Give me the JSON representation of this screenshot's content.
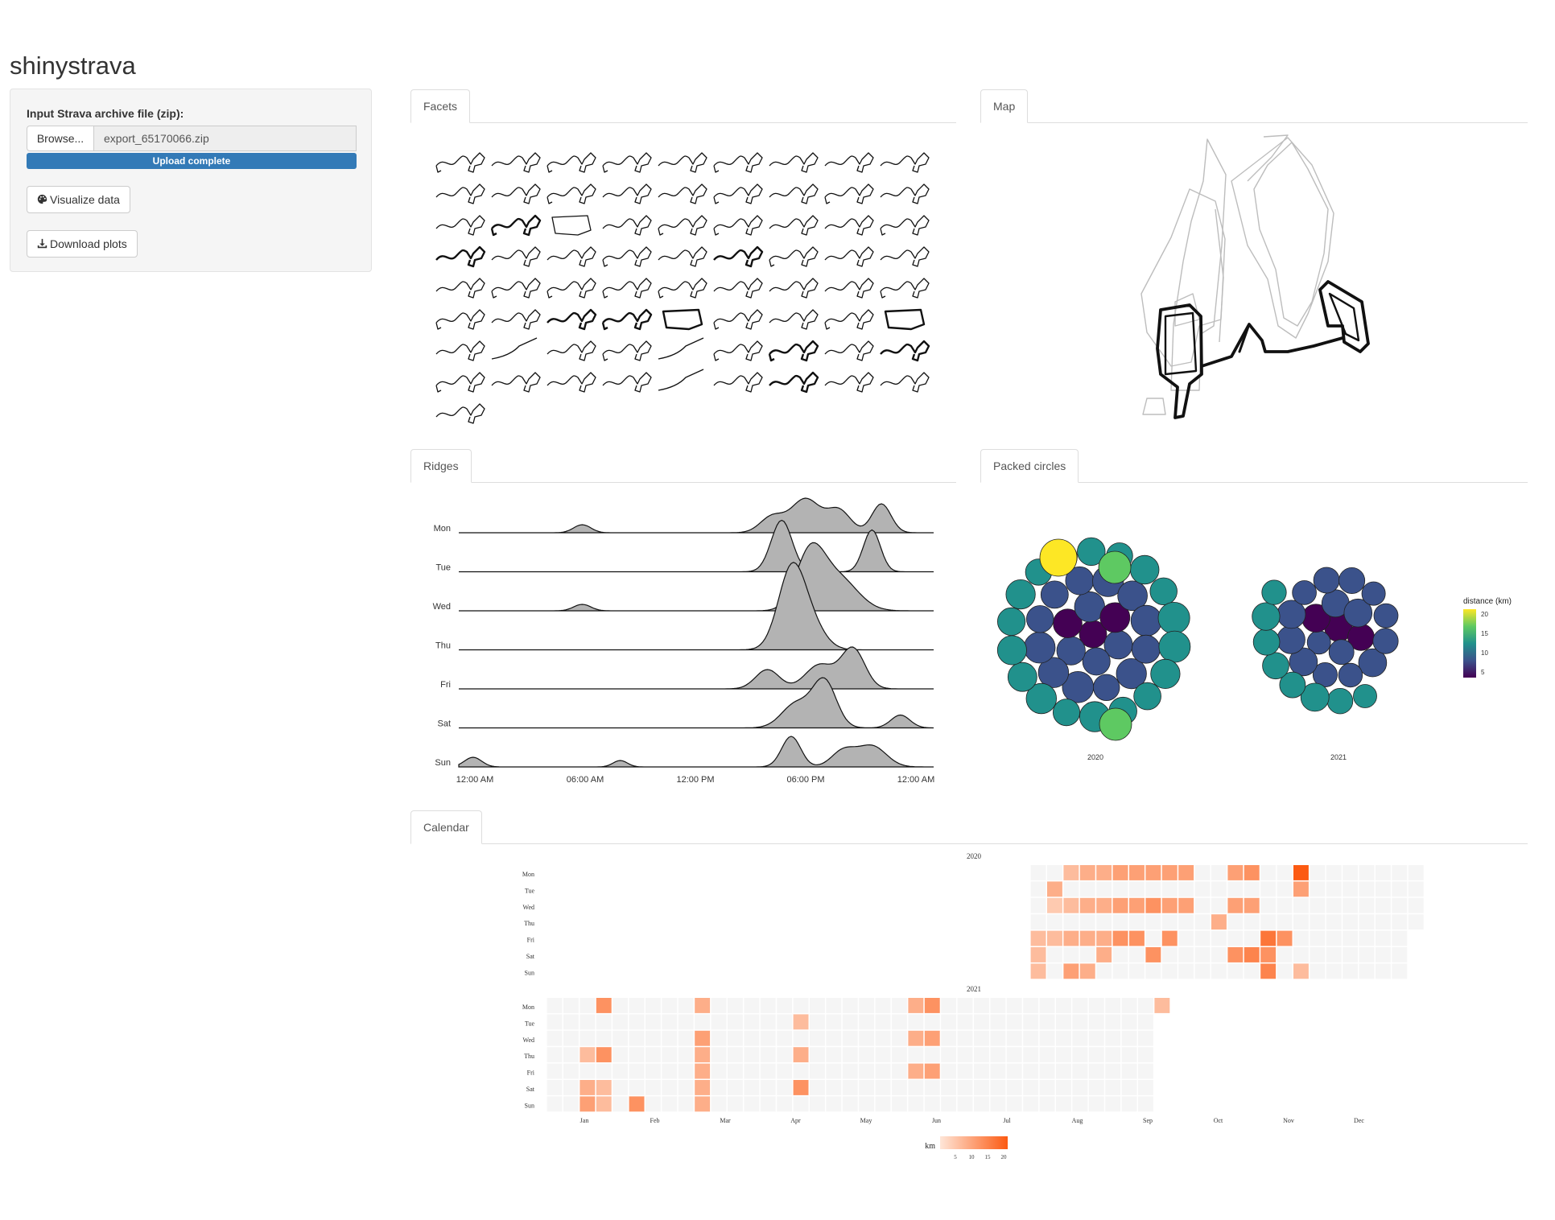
{
  "app": {
    "title": "shinystrava"
  },
  "sidebar": {
    "file_label": "Input Strava archive file (zip):",
    "browse_label": "Browse...",
    "file_name": "export_65170066.zip",
    "upload_status": "Upload complete",
    "upload_progress": 1.0,
    "visualize_label": "Visualize data",
    "download_label": "Download plots"
  },
  "tabs": {
    "facets": "Facets",
    "map": "Map",
    "ridges": "Ridges",
    "packed": "Packed circles",
    "calendar": "Calendar"
  },
  "ridges": {
    "days": [
      "Mon",
      "Tue",
      "Wed",
      "Thu",
      "Fri",
      "Sat",
      "Sun"
    ],
    "x_ticks": [
      "12:00 AM",
      "06:00 AM",
      "12:00 PM",
      "06:00 PM",
      "12:00 AM"
    ],
    "fill_color": "#b3b3b3"
  },
  "packed": {
    "legend_title": "distance (km)",
    "legend_ticks": [
      "20",
      "15",
      "10",
      "5"
    ],
    "groups": [
      "2020",
      "2021"
    ],
    "palette": [
      "#440154",
      "#3b528b",
      "#21918c",
      "#5ec962",
      "#fde725"
    ]
  },
  "calendar": {
    "years": [
      "2020",
      "2021"
    ],
    "days": [
      "Mon",
      "Tue",
      "Wed",
      "Thu",
      "Fri",
      "Sat",
      "Sun"
    ],
    "months": [
      "Jan",
      "Feb",
      "Mar",
      "Apr",
      "May",
      "Jun",
      "Jul",
      "Aug",
      "Sep",
      "Oct",
      "Nov",
      "Dec"
    ],
    "legend_title": "km",
    "legend_ticks": [
      "5",
      "10",
      "15",
      "20"
    ],
    "empty_color": "#f5f5f5",
    "scale": [
      "#fee6d8",
      "#fc5a12"
    ]
  }
}
